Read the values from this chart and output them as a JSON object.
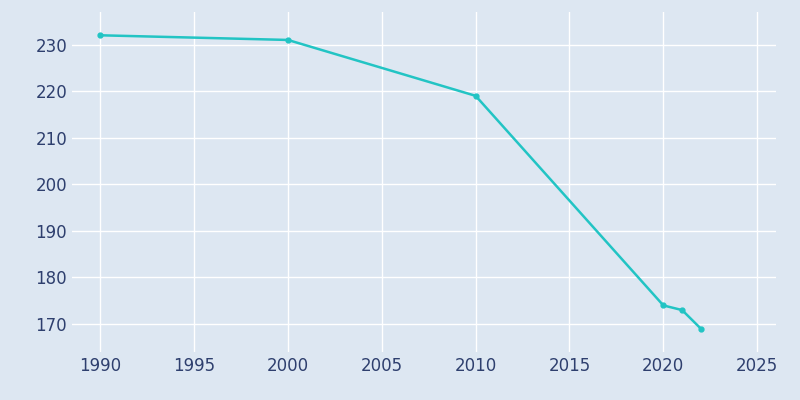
{
  "years": [
    1990,
    2000,
    2010,
    2020,
    2021,
    2022
  ],
  "population": [
    232,
    231,
    219,
    174,
    173,
    169
  ],
  "line_color": "#22c4c4",
  "marker": "o",
  "marker_size": 3.5,
  "line_width": 1.8,
  "background_color": "#dde7f2",
  "grid_color": "#ffffff",
  "xlabel": "",
  "ylabel": "",
  "xlim": [
    1988.5,
    2026
  ],
  "ylim": [
    164,
    237
  ],
  "xticks": [
    1990,
    1995,
    2000,
    2005,
    2010,
    2015,
    2020,
    2025
  ],
  "yticks": [
    170,
    180,
    190,
    200,
    210,
    220,
    230
  ],
  "tick_color": "#2e3f6e",
  "tick_fontsize": 12
}
